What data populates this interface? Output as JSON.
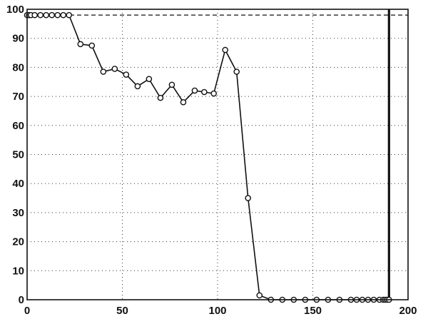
{
  "chart_data": {
    "type": "line",
    "title": "",
    "xlabel": "",
    "ylabel": "",
    "xlim": [
      0,
      200
    ],
    "ylim": [
      0,
      100
    ],
    "xticks": [
      0,
      50,
      100,
      150,
      200
    ],
    "yticks": [
      0,
      10,
      20,
      30,
      40,
      50,
      60,
      70,
      80,
      90,
      100
    ],
    "grid": true,
    "series": [
      {
        "marker": "circle",
        "color": "#111111",
        "x": [
          0,
          1,
          2,
          4,
          7,
          10,
          13,
          16,
          19,
          22,
          28,
          34,
          40,
          46,
          52,
          58,
          64,
          70,
          76,
          82,
          88,
          93,
          98,
          104,
          110,
          116,
          122,
          128,
          134,
          140,
          146,
          152,
          158,
          164,
          170,
          173,
          176,
          179,
          182,
          185,
          187,
          188,
          189,
          190
        ],
        "values": [
          98,
          98,
          98,
          98,
          98,
          98,
          98,
          98,
          98,
          98,
          88,
          87.5,
          78.5,
          79.5,
          77.5,
          73.5,
          76,
          69.5,
          74,
          68,
          72,
          71.5,
          71,
          86,
          78.5,
          35,
          1.5,
          0,
          0,
          0,
          0,
          0,
          0,
          0,
          0,
          0,
          0,
          0,
          0,
          0,
          0,
          0,
          0,
          0
        ]
      }
    ],
    "reference_lines": [
      {
        "orientation": "horizontal",
        "value": 98,
        "style": "dashed"
      },
      {
        "orientation": "vertical",
        "value": 190,
        "style": "solid"
      }
    ]
  }
}
